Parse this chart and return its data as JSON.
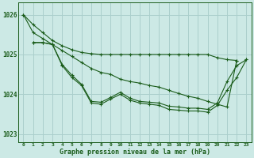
{
  "title": "Graphe pression niveau de la mer (hPa)",
  "bg_color": "#cce9e5",
  "grid_color": "#aacfcc",
  "line_color": "#1a5c1a",
  "xlim": [
    -0.5,
    23.5
  ],
  "ylim": [
    1022.8,
    1026.3
  ],
  "yticks": [
    1023,
    1024,
    1025,
    1026
  ],
  "xticks": [
    0,
    1,
    2,
    3,
    4,
    5,
    6,
    7,
    8,
    9,
    10,
    11,
    12,
    13,
    14,
    15,
    16,
    17,
    18,
    19,
    20,
    21,
    22,
    23
  ],
  "series": [
    [
      1026.0,
      1025.75,
      1025.55,
      1025.35,
      1025.22,
      1025.12,
      1025.05,
      1025.02,
      1025.0,
      1025.0,
      1025.0,
      1025.0,
      1025.0,
      1025.0,
      1025.0,
      1025.0,
      1025.0,
      1025.0,
      1025.0,
      1025.0,
      1024.92,
      1024.87,
      1024.85,
      null
    ],
    [
      1026.0,
      1025.55,
      1025.4,
      1025.25,
      1025.1,
      1024.95,
      1024.8,
      1024.65,
      1024.55,
      1024.5,
      1024.38,
      1024.32,
      1024.28,
      1024.22,
      1024.18,
      1024.1,
      1024.02,
      1023.95,
      1023.9,
      1023.82,
      1023.75,
      1023.68,
      1024.85,
      null
    ],
    [
      null,
      1025.3,
      1025.3,
      1025.25,
      1024.75,
      1024.48,
      1024.25,
      1023.82,
      1023.8,
      1023.92,
      1024.05,
      1023.9,
      1023.82,
      1023.8,
      1023.78,
      1023.7,
      1023.68,
      1023.65,
      1023.65,
      1023.62,
      1023.78,
      1024.32,
      1024.72,
      1024.87
    ],
    [
      null,
      1025.3,
      1025.3,
      1025.25,
      1024.72,
      1024.42,
      1024.22,
      1023.78,
      1023.75,
      1023.88,
      1024.0,
      1023.85,
      1023.78,
      1023.75,
      1023.72,
      1023.62,
      1023.6,
      1023.58,
      1023.58,
      1023.55,
      1023.72,
      1024.1,
      1024.42,
      1024.87
    ]
  ]
}
